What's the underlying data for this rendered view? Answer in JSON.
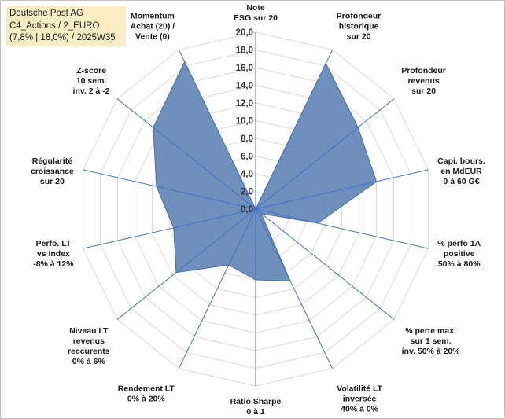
{
  "title_box": {
    "line1": "Deutsche Post AG",
    "line2": "C4_Actions / 2_EURO",
    "line3": "(7,8% | 18,0%) / 2025W35"
  },
  "chart_data": {
    "type": "radar",
    "rmax": 20,
    "ticks": [
      "0,0",
      "2,0",
      "4,0",
      "6,0",
      "8,0",
      "10,0",
      "12,0",
      "14,0",
      "16,0",
      "18,0",
      "20,0"
    ],
    "categories": [
      [
        "Note",
        "ESG sur 20"
      ],
      [
        "Profondeur",
        "historique",
        "sur 20"
      ],
      [
        "Profondeur",
        "revenus",
        "sur 20"
      ],
      [
        "Capi. bours.",
        "en MdEUR",
        "0 à 60 G€"
      ],
      [
        "% perfo 1A",
        "positive",
        "50% à 80%"
      ],
      [
        "% perte max.",
        "sur 1 sem.",
        "inv. 50% à 20%"
      ],
      [
        "Volatilité LT",
        "inversée",
        "40% à 0%"
      ],
      [
        "Ratio Sharpe",
        "0 à 1"
      ],
      [
        "Rendement LT",
        "0% à 20%"
      ],
      [
        "Niveau LT",
        "revenus",
        "reccurents",
        "0% à 6%"
      ],
      [
        "Perfo. LT",
        "vs index",
        "-8% à 12%"
      ],
      [
        "Régularité",
        "croissance",
        "sur 20"
      ],
      [
        "Z-score",
        "10 sem.",
        "inv. 2 à -2"
      ],
      [
        "Momentum",
        "Achat (20) /",
        "Vente (0)"
      ]
    ],
    "values": [
      0,
      18.3,
      14.8,
      14.0,
      7.2,
      0.8,
      9.0,
      8.0,
      7.0,
      11.5,
      9.5,
      11.5,
      14.8,
      18.5
    ],
    "fill_color": "#5b7fb3",
    "line_color": "#4a6fa5",
    "grid_color": "#d9d9d9",
    "spoke_color": "#4472c4",
    "grid": true
  }
}
